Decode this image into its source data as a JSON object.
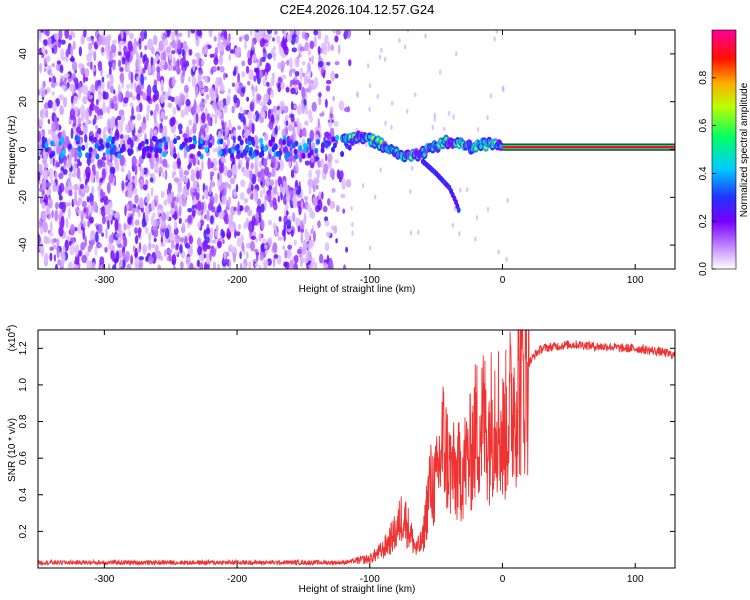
{
  "title": "C2E4.2026.104.12.57.G24",
  "chart_data": [
    {
      "type": "heatmap",
      "xlabel": "Height of straight line (km)",
      "ylabel": "Frequency (Hz)",
      "xlim": [
        -350,
        130
      ],
      "ylim": [
        -50,
        50
      ],
      "xticks": [
        -300,
        -200,
        -100,
        0,
        100
      ],
      "yticks": [
        -40,
        -20,
        0,
        20,
        40
      ],
      "colorbar": {
        "label": "Normalized spectral amplitude",
        "range": [
          0,
          1
        ],
        "ticks": [
          0.0,
          0.2,
          0.4,
          0.6,
          0.8
        ],
        "tick_labels": [
          "0.0",
          "0.2",
          "0.4",
          "0.6",
          "0.8"
        ],
        "colormap": "white-purple-blue-cyan-green-yellow-red-magenta"
      },
      "features": {
        "noise_region_x": [
          -350,
          -115
        ],
        "signal_track": [
          {
            "x": -120,
            "y": 4
          },
          {
            "x": -105,
            "y": 5
          },
          {
            "x": -95,
            "y": 3
          },
          {
            "x": -85,
            "y": 0
          },
          {
            "x": -75,
            "y": -3
          },
          {
            "x": -65,
            "y": -2
          },
          {
            "x": -55,
            "y": 0
          },
          {
            "x": -45,
            "y": 3
          },
          {
            "x": -35,
            "y": 3
          },
          {
            "x": -25,
            "y": 1
          },
          {
            "x": -15,
            "y": 2
          },
          {
            "x": -5,
            "y": 2
          },
          {
            "x": 0,
            "y": 1
          },
          {
            "x": 130,
            "y": 1
          }
        ],
        "branch_track": [
          {
            "x": -60,
            "y": -5
          },
          {
            "x": -50,
            "y": -10
          },
          {
            "x": -40,
            "y": -16
          },
          {
            "x": -35,
            "y": -22
          },
          {
            "x": -32,
            "y": -27
          }
        ],
        "steady_line_x": [
          0,
          130
        ],
        "steady_line_y": 1
      }
    },
    {
      "type": "line",
      "xlabel": "Height of straight line (km)",
      "ylabel": "SNR (10 * v/v)",
      "y_scale_note": "(x10",
      "y_scale_exp": "4",
      "y_scale_close": ")",
      "xlim": [
        -350,
        130
      ],
      "ylim": [
        0,
        1.3
      ],
      "xticks": [
        -300,
        -200,
        -100,
        0,
        100
      ],
      "yticks": [
        0.2,
        0.4,
        0.6,
        0.8,
        1.0,
        1.2
      ],
      "ytick_labels": [
        "0.2",
        "0.4",
        "0.6",
        "0.8",
        "1.0",
        "1.2"
      ],
      "color": "#ee3333",
      "series": [
        {
          "x": [
            -350,
            -300,
            -250,
            -200,
            -150,
            -120,
            -100,
            -90,
            -80,
            -75,
            -70,
            -65,
            -60,
            -55,
            -50,
            -45,
            -40,
            -35,
            -30,
            -25,
            -20,
            -15,
            -10,
            -5,
            0,
            5,
            10,
            15,
            20,
            25,
            30,
            40,
            50,
            60,
            70,
            80,
            90,
            100,
            110,
            120,
            130
          ],
          "y": [
            0.03,
            0.03,
            0.03,
            0.03,
            0.03,
            0.03,
            0.05,
            0.1,
            0.2,
            0.3,
            0.2,
            0.1,
            0.15,
            0.45,
            0.45,
            0.7,
            0.55,
            0.5,
            0.55,
            0.6,
            0.75,
            0.8,
            0.75,
            0.9,
            0.7,
            0.85,
            0.95,
            1.05,
            1.12,
            1.17,
            1.2,
            1.21,
            1.22,
            1.22,
            1.21,
            1.21,
            1.2,
            1.2,
            1.19,
            1.18,
            1.16
          ]
        }
      ]
    }
  ]
}
